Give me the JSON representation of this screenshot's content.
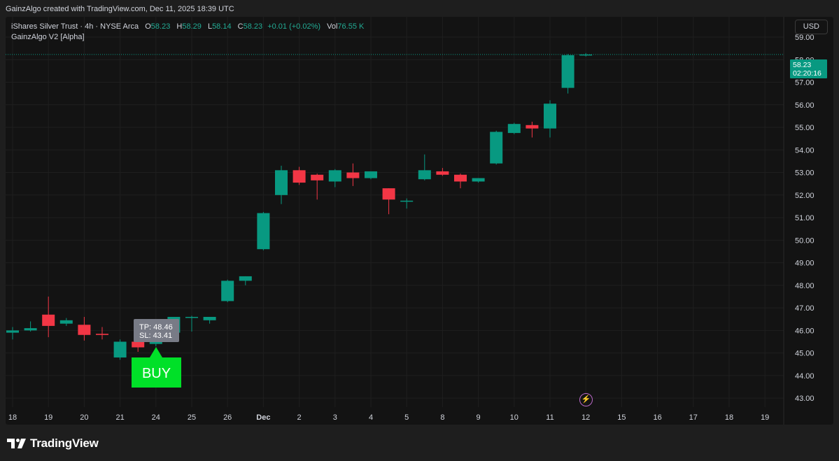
{
  "header": {
    "attribution": "GainzAlgo created with TradingView.com, Dec 11, 2025 18:39 UTC"
  },
  "legend": {
    "symbol": "iShares Silver Trust · 4h · NYSE Arca",
    "o_label": "O",
    "o_value": "58.23",
    "h_label": "H",
    "h_value": "58.29",
    "l_label": "L",
    "l_value": "58.14",
    "c_label": "C",
    "c_value": "58.23",
    "change": "+0.01 (+0.02%)",
    "vol_label": "Vol",
    "vol_value": "76.55 K",
    "indicator": "GainzAlgo V2 [Alpha]"
  },
  "currency": "USD",
  "last_price": {
    "price": "58.23",
    "countdown": "02:20:16"
  },
  "signal": {
    "tp": "TP: 48.46",
    "sl": "SL: 43.41",
    "label": "BUY"
  },
  "footer": {
    "brand": "TradingView"
  },
  "colors": {
    "up": "#089981",
    "down": "#f23645",
    "buy": "#00e028",
    "background": "#131313",
    "grid": "#1f1f1f"
  },
  "icons": [
    "lightning-icon",
    "tradingview-logo-icon"
  ],
  "chart_data": {
    "type": "candlestick",
    "ylim": [
      42.6,
      59.9
    ],
    "y_ticks": [
      "59.00",
      "58.00",
      "57.00",
      "56.00",
      "55.00",
      "54.00",
      "53.00",
      "52.00",
      "51.00",
      "50.00",
      "49.00",
      "48.00",
      "47.00",
      "46.00",
      "45.00",
      "44.00",
      "43.00"
    ],
    "x_ticks": [
      "18",
      "19",
      "20",
      "21",
      "24",
      "25",
      "26",
      "Dec",
      "2",
      "3",
      "4",
      "5",
      "8",
      "9",
      "10",
      "11",
      "12",
      "15",
      "16",
      "17",
      "18",
      "19"
    ],
    "candles": [
      {
        "o": 45.9,
        "h": 46.15,
        "l": 45.6,
        "c": 46.0
      },
      {
        "o": 46.0,
        "h": 46.4,
        "l": 45.95,
        "c": 46.1
      },
      {
        "o": 46.7,
        "h": 47.5,
        "l": 45.7,
        "c": 46.2
      },
      {
        "o": 46.3,
        "h": 46.55,
        "l": 46.2,
        "c": 46.45
      },
      {
        "o": 46.25,
        "h": 46.6,
        "l": 45.55,
        "c": 45.8
      },
      {
        "o": 45.85,
        "h": 46.15,
        "l": 45.6,
        "c": 45.8
      },
      {
        "o": 44.8,
        "h": 45.6,
        "l": 44.7,
        "c": 45.5
      },
      {
        "o": 45.5,
        "h": 45.6,
        "l": 45.05,
        "c": 45.25
      },
      {
        "o": 45.4,
        "h": 45.8,
        "l": 45.3,
        "c": 45.6
      },
      {
        "o": 45.9,
        "h": 46.6,
        "l": 45.85,
        "c": 46.6
      },
      {
        "o": 46.6,
        "h": 46.65,
        "l": 45.95,
        "c": 46.6
      },
      {
        "o": 46.45,
        "h": 46.6,
        "l": 46.3,
        "c": 46.6
      },
      {
        "o": 47.3,
        "h": 48.25,
        "l": 47.25,
        "c": 48.2
      },
      {
        "o": 48.2,
        "h": 48.4,
        "l": 48.0,
        "c": 48.4
      },
      {
        "o": 49.6,
        "h": 51.25,
        "l": 49.55,
        "c": 51.2
      },
      {
        "o": 52.0,
        "h": 53.3,
        "l": 51.6,
        "c": 53.1
      },
      {
        "o": 53.1,
        "h": 53.25,
        "l": 52.45,
        "c": 52.55
      },
      {
        "o": 52.9,
        "h": 52.95,
        "l": 51.8,
        "c": 52.65
      },
      {
        "o": 52.6,
        "h": 53.15,
        "l": 52.35,
        "c": 53.1
      },
      {
        "o": 53.0,
        "h": 53.4,
        "l": 52.4,
        "c": 52.75
      },
      {
        "o": 52.75,
        "h": 53.05,
        "l": 52.7,
        "c": 53.05
      },
      {
        "o": 52.3,
        "h": 52.3,
        "l": 51.15,
        "c": 51.8
      },
      {
        "o": 51.75,
        "h": 51.85,
        "l": 51.4,
        "c": 51.75
      },
      {
        "o": 52.7,
        "h": 53.8,
        "l": 52.65,
        "c": 53.1
      },
      {
        "o": 53.05,
        "h": 53.2,
        "l": 52.85,
        "c": 52.9
      },
      {
        "o": 52.9,
        "h": 52.95,
        "l": 52.3,
        "c": 52.6
      },
      {
        "o": 52.6,
        "h": 52.75,
        "l": 52.55,
        "c": 52.75
      },
      {
        "o": 53.4,
        "h": 54.85,
        "l": 53.35,
        "c": 54.8
      },
      {
        "o": 54.75,
        "h": 55.2,
        "l": 54.7,
        "c": 55.15
      },
      {
        "o": 55.1,
        "h": 55.25,
        "l": 54.55,
        "c": 54.95
      },
      {
        "o": 54.95,
        "h": 56.2,
        "l": 54.55,
        "c": 56.05
      },
      {
        "o": 56.75,
        "h": 58.25,
        "l": 56.5,
        "c": 58.2
      },
      {
        "o": 58.23,
        "h": 58.29,
        "l": 58.14,
        "c": 58.23
      }
    ],
    "current_price": 58.23,
    "buy_signal_candle": 7
  }
}
